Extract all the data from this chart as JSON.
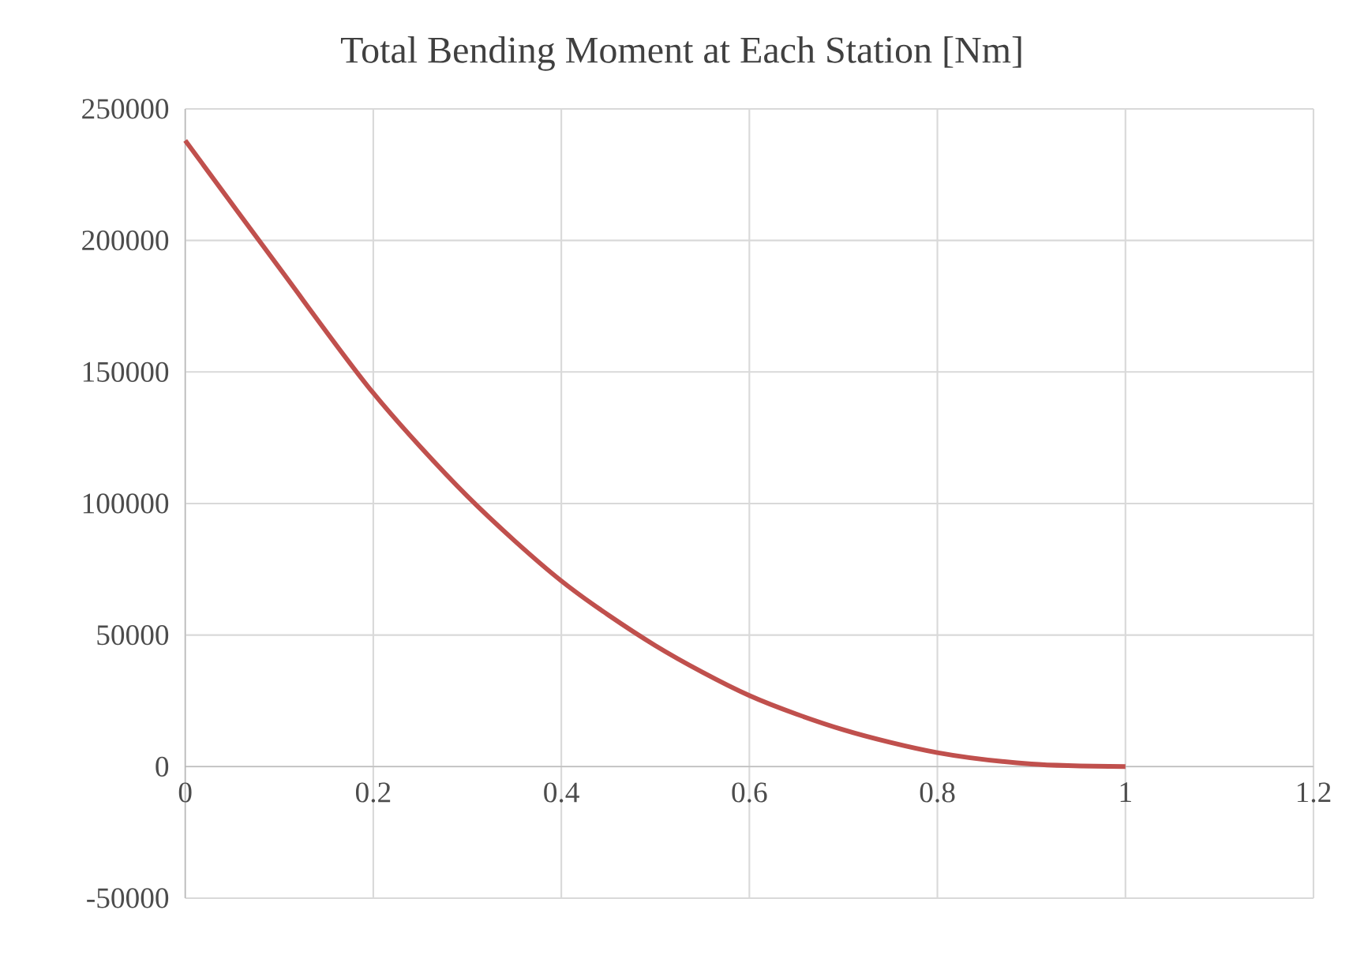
{
  "chart_data": {
    "type": "line",
    "title": "Total Bending Moment at Each Station [Nm]",
    "x": [
      0,
      0.1,
      0.2,
      0.3,
      0.4,
      0.5,
      0.6,
      0.7,
      0.8,
      0.9,
      1
    ],
    "series": [
      {
        "color": "#c0504d",
        "values": [
          238000,
          189600,
          142000,
          102800,
          70600,
          46000,
          27000,
          14000,
          5300,
          1000,
          0
        ]
      }
    ],
    "xlim": [
      0,
      1.2
    ],
    "ylim": [
      -50000,
      250000
    ],
    "xticks": [
      0,
      0.2,
      0.4,
      0.6,
      0.8,
      1,
      1.2
    ],
    "yticks": [
      -50000,
      0,
      50000,
      100000,
      150000,
      200000,
      250000
    ],
    "grid": true,
    "marker": "none",
    "line_style": "solid"
  }
}
